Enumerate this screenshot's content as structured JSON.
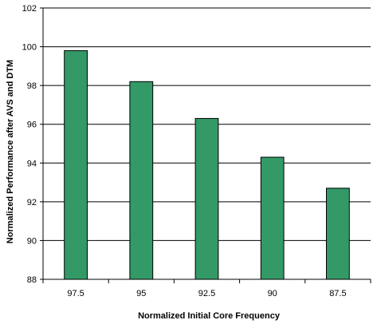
{
  "chart_data": {
    "type": "bar",
    "title": "",
    "xlabel": "Normalized Initial Core Frequency",
    "ylabel": "Normalized Performance after AVS and DTM",
    "categories": [
      "97.5",
      "95",
      "92.5",
      "90",
      "87.5"
    ],
    "values": [
      99.8,
      98.2,
      96.3,
      94.3,
      92.7
    ],
    "ylim": [
      88,
      102
    ],
    "yticks": [
      88,
      90,
      92,
      94,
      96,
      98,
      100,
      102
    ],
    "grid": true,
    "legend": "none",
    "bar_color": "#339966"
  }
}
